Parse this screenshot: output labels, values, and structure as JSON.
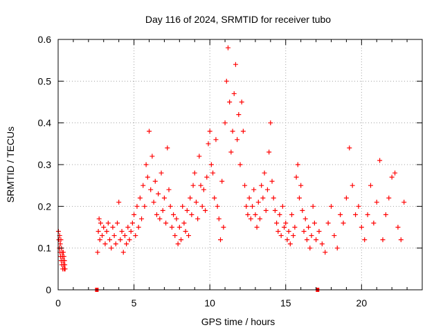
{
  "chart_data": {
    "type": "scatter",
    "title": "Day 116 of 2024, SRMTID for receiver tubo",
    "xlabel": "GPS time / hours",
    "ylabel": "SRMTID / TECUs",
    "xlim": [
      0,
      24
    ],
    "ylim": [
      0,
      0.6
    ],
    "x_ticks": [
      0,
      5,
      10,
      15,
      20
    ],
    "x_tick_labels": [
      "0",
      "5",
      "10",
      "15",
      "20"
    ],
    "y_ticks": [
      0,
      0.1,
      0.2,
      0.3,
      0.4,
      0.5,
      0.6
    ],
    "y_tick_labels": [
      "0",
      "0.1",
      "0.2",
      "0.3",
      "0.4",
      "0.5",
      "0.6"
    ],
    "grid": true,
    "marker": "+",
    "color": "#ff0000",
    "data_gap_markers_x": [
      2.55,
      17.1
    ],
    "series": [
      {
        "name": "SRMTID",
        "x": [
          0.02,
          0.05,
          0.08,
          0.1,
          0.12,
          0.14,
          0.16,
          0.18,
          0.2,
          0.22,
          0.24,
          0.26,
          0.28,
          0.3,
          0.32,
          0.34,
          0.36,
          0.38,
          0.4,
          0.42,
          0.44,
          0.46,
          2.6,
          2.65,
          2.7,
          2.75,
          2.8,
          2.9,
          3.0,
          3.1,
          3.2,
          3.3,
          3.4,
          3.5,
          3.6,
          3.7,
          3.8,
          3.9,
          4.0,
          4.1,
          4.2,
          4.3,
          4.4,
          4.5,
          4.6,
          4.7,
          4.8,
          4.9,
          5.0,
          5.1,
          5.2,
          5.3,
          5.4,
          5.5,
          5.6,
          5.7,
          5.8,
          5.9,
          6.0,
          6.1,
          6.2,
          6.3,
          6.4,
          6.5,
          6.6,
          6.7,
          6.8,
          6.9,
          7.0,
          7.1,
          7.2,
          7.3,
          7.4,
          7.5,
          7.6,
          7.7,
          7.8,
          7.9,
          8.0,
          8.1,
          8.2,
          8.3,
          8.4,
          8.5,
          8.6,
          8.7,
          8.8,
          8.9,
          9.0,
          9.1,
          9.2,
          9.3,
          9.4,
          9.5,
          9.6,
          9.7,
          9.8,
          9.9,
          10.0,
          10.1,
          10.2,
          10.3,
          10.4,
          10.5,
          10.6,
          10.7,
          10.8,
          10.9,
          11.0,
          11.1,
          11.2,
          11.3,
          11.4,
          11.5,
          11.6,
          11.7,
          11.8,
          11.9,
          12.0,
          12.1,
          12.2,
          12.3,
          12.4,
          12.5,
          12.6,
          12.7,
          12.8,
          12.9,
          13.0,
          13.1,
          13.2,
          13.3,
          13.4,
          13.5,
          13.6,
          13.7,
          13.8,
          13.9,
          14.0,
          14.1,
          14.2,
          14.3,
          14.4,
          14.5,
          14.6,
          14.7,
          14.8,
          14.9,
          15.0,
          15.1,
          15.2,
          15.3,
          15.4,
          15.5,
          15.6,
          15.7,
          15.8,
          15.9,
          16.0,
          16.1,
          16.2,
          16.3,
          16.4,
          16.5,
          16.6,
          16.7,
          16.8,
          16.9,
          17.0,
          17.2,
          17.4,
          17.6,
          17.8,
          18.0,
          18.2,
          18.4,
          18.6,
          18.8,
          19.0,
          19.2,
          19.4,
          19.6,
          19.8,
          20.0,
          20.2,
          20.4,
          20.6,
          20.8,
          21.0,
          21.2,
          21.4,
          21.6,
          21.8,
          22.0,
          22.2,
          22.4,
          22.6,
          22.8
        ],
        "y": [
          0.14,
          0.12,
          0.1,
          0.13,
          0.09,
          0.11,
          0.08,
          0.12,
          0.07,
          0.1,
          0.06,
          0.09,
          0.08,
          0.05,
          0.07,
          0.09,
          0.06,
          0.08,
          0.05,
          0.07,
          0.06,
          0.05,
          0.09,
          0.14,
          0.17,
          0.12,
          0.16,
          0.13,
          0.15,
          0.11,
          0.14,
          0.16,
          0.12,
          0.1,
          0.15,
          0.13,
          0.11,
          0.16,
          0.21,
          0.12,
          0.14,
          0.09,
          0.13,
          0.11,
          0.15,
          0.12,
          0.14,
          0.16,
          0.18,
          0.13,
          0.2,
          0.15,
          0.22,
          0.17,
          0.25,
          0.2,
          0.3,
          0.27,
          0.38,
          0.24,
          0.32,
          0.21,
          0.26,
          0.18,
          0.23,
          0.17,
          0.28,
          0.19,
          0.22,
          0.16,
          0.34,
          0.24,
          0.2,
          0.15,
          0.18,
          0.13,
          0.17,
          0.11,
          0.15,
          0.12,
          0.2,
          0.16,
          0.14,
          0.19,
          0.13,
          0.22,
          0.18,
          0.25,
          0.28,
          0.21,
          0.17,
          0.32,
          0.25,
          0.2,
          0.24,
          0.19,
          0.27,
          0.35,
          0.38,
          0.3,
          0.28,
          0.22,
          0.36,
          0.2,
          0.17,
          0.12,
          0.26,
          0.15,
          0.4,
          0.5,
          0.58,
          0.45,
          0.33,
          0.38,
          0.47,
          0.54,
          0.36,
          0.42,
          0.3,
          0.45,
          0.38,
          0.25,
          0.2,
          0.18,
          0.22,
          0.17,
          0.2,
          0.24,
          0.18,
          0.15,
          0.21,
          0.17,
          0.25,
          0.22,
          0.28,
          0.19,
          0.24,
          0.33,
          0.4,
          0.26,
          0.22,
          0.19,
          0.16,
          0.14,
          0.18,
          0.13,
          0.2,
          0.15,
          0.16,
          0.12,
          0.14,
          0.11,
          0.18,
          0.13,
          0.15,
          0.27,
          0.3,
          0.22,
          0.25,
          0.19,
          0.14,
          0.17,
          0.12,
          0.15,
          0.1,
          0.13,
          0.2,
          0.16,
          0.12,
          0.14,
          0.11,
          0.09,
          0.16,
          0.2,
          0.13,
          0.1,
          0.18,
          0.16,
          0.22,
          0.34,
          0.25,
          0.18,
          0.2,
          0.15,
          0.12,
          0.18,
          0.25,
          0.16,
          0.21,
          0.31,
          0.12,
          0.18,
          0.22,
          0.27,
          0.28,
          0.15,
          0.12,
          0.21
        ]
      }
    ]
  }
}
